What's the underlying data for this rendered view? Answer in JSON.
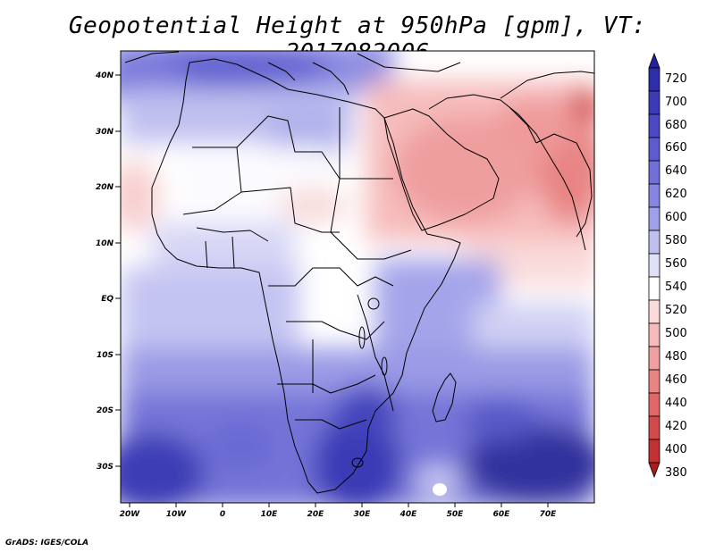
{
  "title": "Geopotential Height at 950hPa [gpm], VT: 2017082006",
  "credit": "GrADS: IGES/COLA",
  "lat_labels": [
    "40N",
    "30N",
    "20N",
    "10N",
    "EQ",
    "10S",
    "20S",
    "30S"
  ],
  "lon_labels": [
    "20W",
    "10W",
    "0",
    "10E",
    "20E",
    "30E",
    "40E",
    "50E",
    "60E",
    "70E"
  ],
  "colorbar": {
    "labels": [
      "720",
      "700",
      "680",
      "660",
      "640",
      "620",
      "600",
      "580",
      "560",
      "540",
      "520",
      "500",
      "480",
      "460",
      "440",
      "420",
      "400",
      "380"
    ],
    "colors": [
      "#24249a",
      "#2e2eaa",
      "#3b3bb8",
      "#4a4ac4",
      "#5c5ccf",
      "#7070d8",
      "#8686e0",
      "#a0a0e8",
      "#c0c0f0",
      "#e0e0f8",
      "#ffffff",
      "#fadada",
      "#f6bcbc",
      "#f0a0a0",
      "#e88484",
      "#e06868",
      "#d24a4a",
      "#c23232",
      "#a81c1c"
    ]
  },
  "map": {
    "variable": "Geopotential Height",
    "level": "950hPa",
    "units": "gpm",
    "valid_time": "2017082006",
    "domain": "Africa, Arabia, western Indian Ocean"
  }
}
